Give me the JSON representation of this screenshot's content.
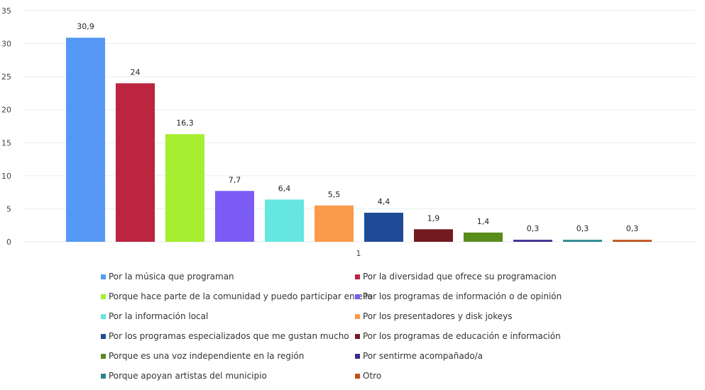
{
  "chart_data": {
    "type": "bar",
    "categories": [
      "1"
    ],
    "ylim": [
      0,
      35
    ],
    "yticks": [
      0,
      5,
      10,
      15,
      20,
      25,
      30,
      35
    ],
    "grid": true,
    "legend_position": "bottom",
    "series": [
      {
        "name": "Por la música que programan",
        "values": [
          30.9
        ],
        "label": "30,9",
        "color": "#5599f5"
      },
      {
        "name": "Por la diversidad que ofrece su programacion",
        "values": [
          24
        ],
        "label": "24",
        "color": "#bb2540"
      },
      {
        "name": "Porque hace parte de la comunidad y puedo participar en ella",
        "values": [
          16.3
        ],
        "label": "16,3",
        "color": "#a6ee30"
      },
      {
        "name": "Por los programas de información o de opinión",
        "values": [
          7.7
        ],
        "label": "7,7",
        "color": "#7b5cf5"
      },
      {
        "name": "Por la información local",
        "values": [
          6.4
        ],
        "label": "6,4",
        "color": "#66e6e0"
      },
      {
        "name": "Por los presentadores y disk jokeys",
        "values": [
          5.5
        ],
        "label": "5,5",
        "color": "#fb9a4a"
      },
      {
        "name": "Por los programas especializados que me gustan mucho",
        "values": [
          4.4
        ],
        "label": "4,4",
        "color": "#1f4a96"
      },
      {
        "name": "Por los programas de educación e información",
        "values": [
          1.9
        ],
        "label": "1,9",
        "color": "#731b20"
      },
      {
        "name": "Porque es una voz independiente en la región",
        "values": [
          1.4
        ],
        "label": "1,4",
        "color": "#5a8c1c"
      },
      {
        "name": "Por sentirme acompañado/a",
        "values": [
          0.3
        ],
        "label": "0,3",
        "color": "#3a2a8c"
      },
      {
        "name": "Porque apoyan artistas del municipio",
        "values": [
          0.3
        ],
        "label": "0,3",
        "color": "#2a8590"
      },
      {
        "name": "Otro",
        "values": [
          0.3
        ],
        "label": "0,3",
        "color": "#c0501a"
      }
    ]
  }
}
